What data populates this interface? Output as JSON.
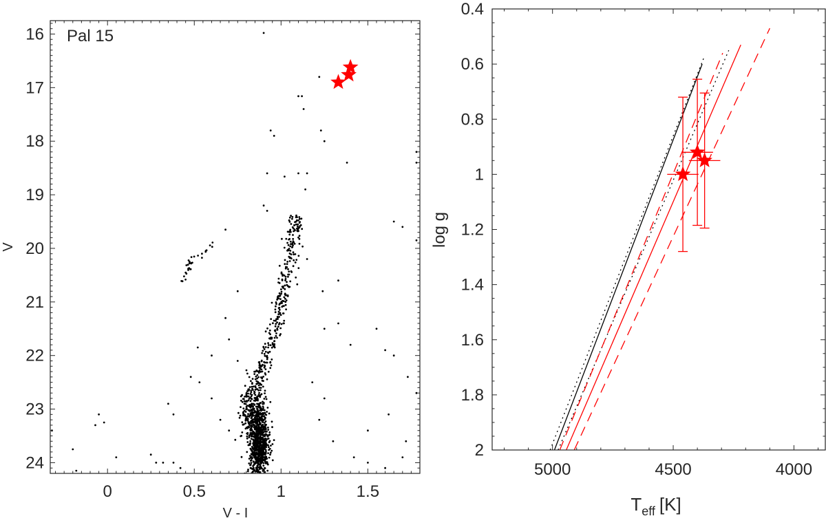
{
  "chart_data": [
    {
      "type": "scatter",
      "panel": "left",
      "annotation": "Pal 15",
      "title": "",
      "xlabel": "V - I",
      "ylabel": "V",
      "xlim": [
        -0.33,
        1.8
      ],
      "ylim": [
        15.75,
        24.2
      ],
      "y_inverted": true,
      "xticks": [
        0,
        0.5,
        1,
        1.5
      ],
      "xtick_labels": [
        "0",
        "0.5",
        "1",
        "1.5"
      ],
      "yticks": [
        16,
        17,
        18,
        19,
        20,
        21,
        22,
        23,
        24
      ],
      "ytick_labels": [
        "16",
        "17",
        "18",
        "19",
        "20",
        "21",
        "22",
        "23",
        "24"
      ],
      "grid": false,
      "legend": "none",
      "series": [
        {
          "marker": "star",
          "color": "#ff0000",
          "points": [
            [
              1.4,
              16.62
            ],
            [
              1.39,
              16.76
            ],
            [
              1.33,
              16.9
            ]
          ]
        },
        {
          "marker": "dot",
          "color": "#000000",
          "clumps": [
            {
              "x": 0.87,
              "y": 23.6,
              "sx": 0.028,
              "sy": 0.42,
              "n": 900
            },
            {
              "x": 0.82,
              "y": 23.0,
              "sx": 0.03,
              "sy": 0.25,
              "n": 150
            }
          ],
          "rgb_track": [
            [
              0.85,
              22.7
            ],
            [
              0.9,
              22.2
            ],
            [
              0.96,
              21.6
            ],
            [
              1.0,
              21.0
            ],
            [
              1.04,
              20.4
            ],
            [
              1.07,
              19.8
            ],
            [
              1.09,
              19.4
            ]
          ],
          "rgb_n": 330,
          "rgb_sx": 0.022,
          "hb_track": [
            [
              0.43,
              20.6
            ],
            [
              0.45,
              20.45
            ],
            [
              0.47,
              20.3
            ],
            [
              0.5,
              20.2
            ],
            [
              0.55,
              20.1
            ],
            [
              0.6,
              19.9
            ]
          ],
          "hb_n": 30,
          "points": [
            [
              0.9,
              15.98
            ],
            [
              1.22,
              16.8
            ],
            [
              1.1,
              17.16
            ],
            [
              1.12,
              17.16
            ],
            [
              1.13,
              17.4
            ],
            [
              1.23,
              17.8
            ],
            [
              1.25,
              18.0
            ],
            [
              0.94,
              17.8
            ],
            [
              0.96,
              17.9
            ],
            [
              1.1,
              18.6
            ],
            [
              1.15,
              18.6
            ],
            [
              1.02,
              18.66
            ],
            [
              0.92,
              18.6
            ],
            [
              1.14,
              18.9
            ],
            [
              1.38,
              18.4
            ],
            [
              0.9,
              19.2
            ],
            [
              0.92,
              19.3
            ],
            [
              1.78,
              18.2
            ],
            [
              1.78,
              18.4
            ],
            [
              0.68,
              19.65
            ],
            [
              1.65,
              19.5
            ],
            [
              1.78,
              19.85
            ],
            [
              1.7,
              19.6
            ],
            [
              0.38,
              23.1
            ],
            [
              0.35,
              22.9
            ],
            [
              -0.05,
              23.1
            ],
            [
              -0.07,
              23.3
            ],
            [
              -0.02,
              23.25
            ],
            [
              -0.32,
              23.4
            ],
            [
              -0.2,
              23.75
            ],
            [
              -0.18,
              24.15
            ],
            [
              0.05,
              23.9
            ],
            [
              0.25,
              23.85
            ],
            [
              0.28,
              24.0
            ],
            [
              0.38,
              24.0
            ],
            [
              0.32,
              24.0
            ],
            [
              0.42,
              24.1
            ],
            [
              0.48,
              22.4
            ],
            [
              0.52,
              21.85
            ],
            [
              0.6,
              22.0
            ],
            [
              0.53,
              22.5
            ],
            [
              0.6,
              22.8
            ],
            [
              0.65,
              23.2
            ],
            [
              0.7,
              23.4
            ],
            [
              1.25,
              21.5
            ],
            [
              1.33,
              21.4
            ],
            [
              1.4,
              21.8
            ],
            [
              1.55,
              21.5
            ],
            [
              1.6,
              21.9
            ],
            [
              1.65,
              22.0
            ],
            [
              1.73,
              22.4
            ],
            [
              1.78,
              22.7
            ],
            [
              1.62,
              23.1
            ],
            [
              1.5,
              23.4
            ],
            [
              1.72,
              23.6
            ],
            [
              1.42,
              23.9
            ],
            [
              1.3,
              23.6
            ],
            [
              1.22,
              23.2
            ],
            [
              1.18,
              22.5
            ],
            [
              1.25,
              22.8
            ],
            [
              0.75,
              22.1
            ],
            [
              0.7,
              21.7
            ],
            [
              0.68,
              21.3
            ],
            [
              0.75,
              20.8
            ],
            [
              1.15,
              20.2
            ],
            [
              1.24,
              20.8
            ],
            [
              1.33,
              20.6
            ],
            [
              1.5,
              24.0
            ],
            [
              1.6,
              24.1
            ],
            [
              1.7,
              23.9
            ]
          ]
        }
      ]
    },
    {
      "type": "line",
      "panel": "right",
      "title": "",
      "xlabel": "T",
      "xlabel_sub": "eff",
      "xlabel_unit": "[K]",
      "ylabel": "log g",
      "xlim": [
        5250,
        3870
      ],
      "ylim": [
        0.4,
        2.0
      ],
      "x_inverted": true,
      "y_inverted": true,
      "xticks": [
        5000,
        4500,
        4000
      ],
      "xtick_labels": [
        "5000",
        "4500",
        "4000"
      ],
      "yticks": [
        0.4,
        0.6,
        0.8,
        1.0,
        1.2,
        1.4,
        1.6,
        1.8,
        2.0
      ],
      "ytick_labels": [
        "0.4",
        "0.6",
        "0.8",
        "1",
        "1.2",
        "1.4",
        "1.6",
        "1.8",
        "2"
      ],
      "grid": false,
      "legend": "none",
      "series": [
        {
          "color": "#000000",
          "dash": "solid",
          "points": [
            [
              4992,
              2.0
            ],
            [
              4380,
              0.6
            ]
          ]
        },
        {
          "color": "#000000",
          "dash": "dotted",
          "points": [
            [
              5010,
              2.0
            ],
            [
              4370,
              0.57
            ]
          ]
        },
        {
          "color": "#000000",
          "dash": "dotted",
          "points": [
            [
              4977,
              2.0
            ],
            [
              4270,
              0.55
            ]
          ]
        },
        {
          "color": "#ff0000",
          "dash": "solid",
          "points": [
            [
              4943,
              2.0
            ],
            [
              4220,
              0.53
            ]
          ]
        },
        {
          "color": "#ff0000",
          "dash": "dashed",
          "points": [
            [
              4970,
              2.0
            ],
            [
              4295,
              0.56
            ]
          ]
        },
        {
          "color": "#ff0000",
          "dash": "dashed",
          "points": [
            [
              4910,
              2.0
            ],
            [
              4100,
              0.47
            ]
          ]
        }
      ],
      "points_with_errors": {
        "color": "#ff0000",
        "points": [
          {
            "x": 4460,
            "y": 1.0,
            "x_err": 65,
            "y_err": 0.28
          },
          {
            "x": 4400,
            "y": 0.92,
            "x_err": 65,
            "y_err": 0.265
          },
          {
            "x": 4370,
            "y": 0.95,
            "x_err": 65,
            "y_err": 0.245
          }
        ]
      }
    }
  ]
}
